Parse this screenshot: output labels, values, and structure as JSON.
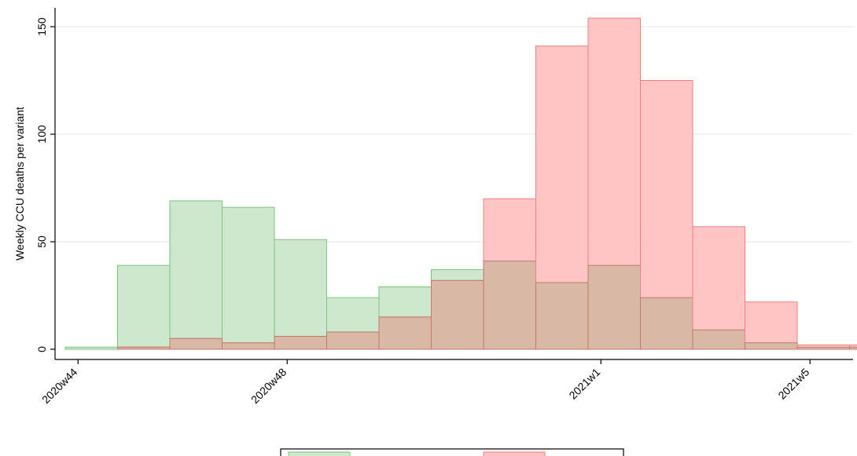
{
  "chart_data": {
    "type": "bar",
    "title": "",
    "xlabel": "",
    "ylabel": "Weekly CCU deaths per variant",
    "x_tick_labels": [
      "2020w44",
      "2020w48",
      "2021w1",
      "2021w5"
    ],
    "categories": [
      "2020w44",
      "2020w45",
      "2020w46",
      "2020w47",
      "2020w48",
      "2020w49",
      "2020w50",
      "2020w51",
      "2020w52",
      "2020w53",
      "2021w1",
      "2021w2",
      "2021w3",
      "2021w4",
      "2021w5",
      "2021w6"
    ],
    "ylim": [
      0,
      160
    ],
    "yticks": [
      0,
      50,
      100,
      150
    ],
    "grid": true,
    "legend_position": "bottom",
    "series": [
      {
        "name": "",
        "color": "#cde8cd",
        "edge": "#7fc27f",
        "values": [
          1,
          39,
          69,
          66,
          51,
          24,
          29,
          37,
          41,
          31,
          39,
          24,
          9,
          3,
          1,
          1
        ]
      },
      {
        "name": "",
        "color": "#ffc2c2",
        "edge": "#f07f7f",
        "values": [
          0,
          1,
          5,
          3,
          6,
          8,
          15,
          32,
          70,
          141,
          154,
          125,
          57,
          22,
          2,
          2
        ]
      }
    ],
    "overlap_color": "#d9b8a6"
  }
}
